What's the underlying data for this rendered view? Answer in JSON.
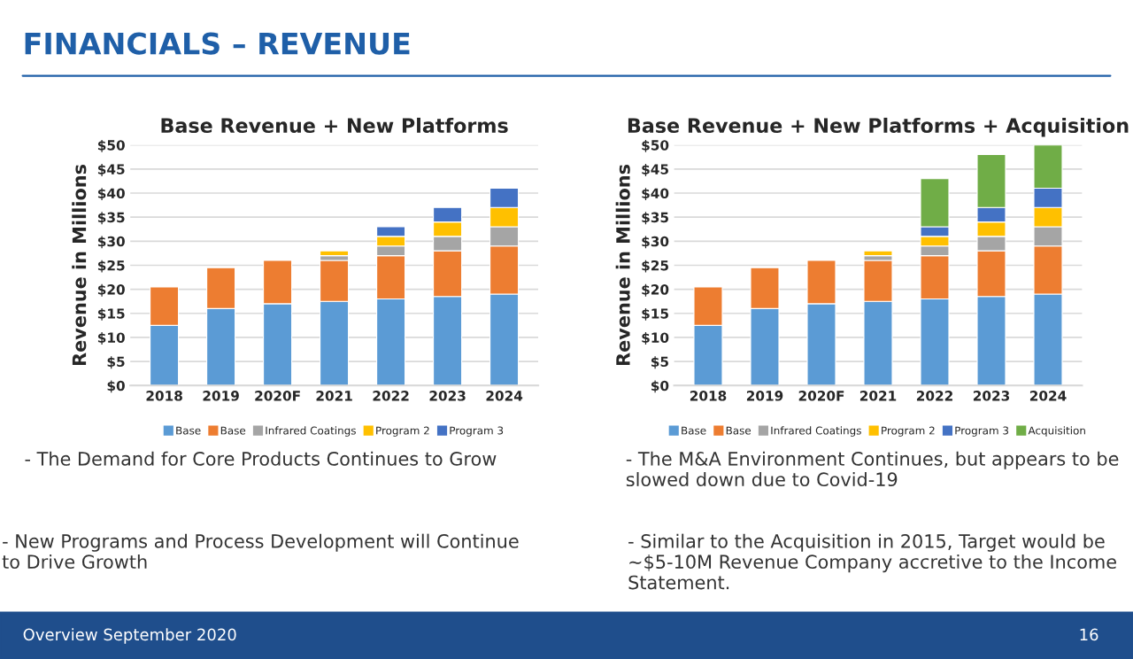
{
  "chart_data": [
    {
      "type": "bar",
      "stacked": true,
      "title": "Base Revenue + New Platforms",
      "ylabel": "Revenue in Millions",
      "categories": [
        "2018",
        "2019",
        "2020F",
        "2021",
        "2022",
        "2023",
        "2024"
      ],
      "series": [
        {
          "name": "Base",
          "color": "#5b9bd5",
          "values": [
            12.5,
            16,
            17,
            17.5,
            18,
            18.5,
            19
          ]
        },
        {
          "name": "Base",
          "color": "#ed7d31",
          "values": [
            8,
            8.5,
            9,
            8.5,
            9,
            9.5,
            10
          ]
        },
        {
          "name": "Infrared Coatings",
          "color": "#a5a5a5",
          "values": [
            null,
            null,
            null,
            1,
            2,
            3,
            4
          ]
        },
        {
          "name": "Program 2",
          "color": "#ffc000",
          "values": [
            null,
            null,
            null,
            1,
            2,
            3,
            4
          ]
        },
        {
          "name": "Program 3",
          "color": "#4472c4",
          "values": [
            null,
            null,
            null,
            null,
            2,
            3,
            4
          ]
        }
      ],
      "ylim": [
        0,
        50
      ],
      "yticks": [
        {
          "value": 0,
          "label": "$0"
        },
        {
          "value": 5,
          "label": "$5"
        },
        {
          "value": 10,
          "label": "$10"
        },
        {
          "value": 15,
          "label": "$15"
        },
        {
          "value": 20,
          "label": "$20"
        },
        {
          "value": 25,
          "label": "$25"
        },
        {
          "value": 30,
          "label": "$30"
        },
        {
          "value": 35,
          "label": "$35"
        },
        {
          "value": 40,
          "label": "$40"
        },
        {
          "value": 45,
          "label": "$45"
        },
        {
          "value": 50,
          "label": "$50"
        }
      ],
      "grid": "y",
      "legend": "bottom",
      "annotations": [
        "FINANCIALS – REVENUE",
        "- The Demand for Core Products Continues to Grow",
        "- New Programs and Process Development will Continue to Drive Growth",
        "Overview September 2020"
      ]
    },
    {
      "type": "bar",
      "stacked": true,
      "title": "Base Revenue + New Platforms + Acquisition",
      "ylabel": "Revenue in Millions",
      "categories": [
        "2018",
        "2019",
        "2020F",
        "2021",
        "2022",
        "2023",
        "2024"
      ],
      "series": [
        {
          "name": "Base",
          "color": "#5b9bd5",
          "values": [
            12.5,
            16,
            17,
            17.5,
            18,
            18.5,
            19
          ]
        },
        {
          "name": "Base",
          "color": "#ed7d31",
          "values": [
            8,
            8.5,
            9,
            8.5,
            9,
            9.5,
            10
          ]
        },
        {
          "name": "Infrared Coatings",
          "color": "#a5a5a5",
          "values": [
            null,
            null,
            null,
            1,
            2,
            3,
            4
          ]
        },
        {
          "name": "Program 2",
          "color": "#ffc000",
          "values": [
            null,
            null,
            null,
            1,
            2,
            3,
            4
          ]
        },
        {
          "name": "Program 3",
          "color": "#4472c4",
          "values": [
            null,
            null,
            null,
            null,
            2,
            3,
            4
          ]
        },
        {
          "name": "Acquisition",
          "color": "#70ad47",
          "values": [
            null,
            null,
            null,
            null,
            10,
            11,
            9
          ]
        }
      ],
      "ylim": [
        0,
        50
      ],
      "yticks": [
        {
          "value": 0,
          "label": "$0"
        },
        {
          "value": 5,
          "label": "$5"
        },
        {
          "value": 10,
          "label": "$10"
        },
        {
          "value": 15,
          "label": "$15"
        },
        {
          "value": 20,
          "label": "$20"
        },
        {
          "value": 25,
          "label": "$25"
        },
        {
          "value": 30,
          "label": "$30"
        },
        {
          "value": 35,
          "label": "$35"
        },
        {
          "value": 40,
          "label": "$40"
        },
        {
          "value": 45,
          "label": "$45"
        },
        {
          "value": 50,
          "label": "$50"
        }
      ],
      "grid": "y",
      "legend": "bottom",
      "annotations": [
        "- The M&A Environment Continues, but appears to be slowed down due to Covid-19",
        "- Similar to the Acquisition in 2015, Target would be ~$5-10M Revenue Company accretive to the Income Statement.",
        "16"
      ]
    }
  ]
}
